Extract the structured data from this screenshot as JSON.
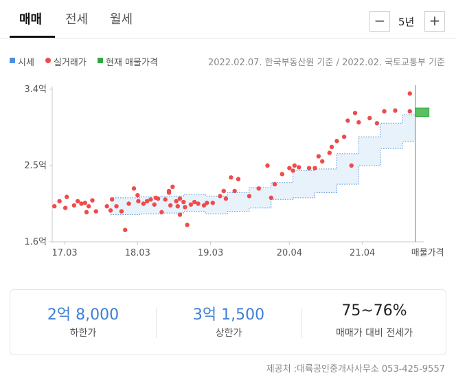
{
  "tabs": [
    {
      "label": "매매",
      "active": true
    },
    {
      "label": "전세",
      "active": false
    },
    {
      "label": "월세",
      "active": false
    }
  ],
  "period": {
    "value": "5년",
    "minus_icon": "minus-icon",
    "plus_icon": "plus-icon"
  },
  "legend": [
    {
      "label": "시세",
      "color": "#4a8fe0",
      "shape": "square"
    },
    {
      "label": "실거래가",
      "color": "#ee4b4b",
      "shape": "dot"
    },
    {
      "label": "현재 매물가격",
      "color": "#2eaa3c",
      "shape": "square"
    }
  ],
  "source_line": "2022.02.07. 한국부동산원 기준 / 2022.02. 국토교통부 기준",
  "chart_data": {
    "type": "scatter",
    "ylim": [
      1.6,
      3.4
    ],
    "y_ticks": [
      {
        "value": 3.4,
        "label": "3.4억"
      },
      {
        "value": 2.5,
        "label": "2.5억"
      },
      {
        "value": 1.6,
        "label": "1.6억"
      }
    ],
    "xlim": [
      2017.0,
      2022.1
    ],
    "x_ticks": [
      {
        "value": 2017.17,
        "label": "17.03"
      },
      {
        "value": 2018.17,
        "label": "18.03"
      },
      {
        "value": 2019.17,
        "label": "19.03"
      },
      {
        "value": 2020.25,
        "label": "20.04"
      },
      {
        "value": 2021.25,
        "label": "21.04"
      }
    ],
    "current_listing_label": "매물가격",
    "series": [
      {
        "name": "시세",
        "type": "band",
        "color": "#4a8fe0",
        "x": [
          2017.8,
          2018.2,
          2018.5,
          2018.8,
          2019.1,
          2019.4,
          2019.7,
          2020.0,
          2020.3,
          2020.6,
          2020.9,
          2021.2,
          2021.5,
          2021.8
        ],
        "upper": [
          2.12,
          2.13,
          2.14,
          2.16,
          2.14,
          2.18,
          2.24,
          2.3,
          2.44,
          2.46,
          2.64,
          2.84,
          3.0,
          3.1
        ],
        "lower": [
          1.92,
          1.93,
          1.94,
          1.96,
          1.93,
          1.96,
          2.0,
          2.1,
          2.12,
          2.18,
          2.28,
          2.5,
          2.7,
          2.78
        ]
      },
      {
        "name": "실거래가",
        "type": "scatter",
        "color": "#ee4b4b",
        "x": [
          2017.03,
          2017.1,
          2017.18,
          2017.2,
          2017.3,
          2017.35,
          2017.4,
          2017.45,
          2017.47,
          2017.5,
          2017.55,
          2017.6,
          2017.75,
          2017.8,
          2017.82,
          2017.88,
          2017.95,
          2018.0,
          2018.05,
          2018.12,
          2018.17,
          2018.18,
          2018.25,
          2018.3,
          2018.35,
          2018.4,
          2018.42,
          2018.45,
          2018.5,
          2018.55,
          2018.6,
          2018.6,
          2018.62,
          2018.65,
          2018.7,
          2018.72,
          2018.75,
          2018.75,
          2018.8,
          2018.82,
          2018.85,
          2018.9,
          2018.95,
          2019.0,
          2019.08,
          2019.12,
          2019.2,
          2019.3,
          2019.35,
          2019.38,
          2019.45,
          2019.5,
          2019.55,
          2019.7,
          2019.83,
          2019.95,
          2020.0,
          2020.05,
          2020.15,
          2020.25,
          2020.3,
          2020.32,
          2020.38,
          2020.52,
          2020.6,
          2020.65,
          2020.7,
          2020.8,
          2020.83,
          2020.9,
          2021.0,
          2021.05,
          2021.1,
          2021.15,
          2021.2,
          2021.35,
          2021.45,
          2021.55,
          2021.7,
          2021.9,
          2021.9
        ],
        "y": [
          2.02,
          2.08,
          2.0,
          2.13,
          2.03,
          2.08,
          2.05,
          2.06,
          1.95,
          2.02,
          2.09,
          1.96,
          2.02,
          1.97,
          2.1,
          2.02,
          1.96,
          1.74,
          2.05,
          2.23,
          2.15,
          2.08,
          2.05,
          2.08,
          2.1,
          2.04,
          2.12,
          2.11,
          1.95,
          2.1,
          2.2,
          2.18,
          2.03,
          2.25,
          2.08,
          2.02,
          2.11,
          1.92,
          2.07,
          2.01,
          1.8,
          2.04,
          2.07,
          2.05,
          2.03,
          2.06,
          2.06,
          2.14,
          2.2,
          2.11,
          2.36,
          2.2,
          2.34,
          2.14,
          2.23,
          2.5,
          2.12,
          2.28,
          2.4,
          2.47,
          2.44,
          2.5,
          2.48,
          2.47,
          2.47,
          2.61,
          2.55,
          2.65,
          2.72,
          2.79,
          2.84,
          3.03,
          2.5,
          3.12,
          3.01,
          3.06,
          3.0,
          3.14,
          3.15,
          3.14,
          3.35
        ]
      },
      {
        "name": "현재 매물가격",
        "type": "range",
        "color": "#2eaa3c",
        "x": 2022.05,
        "y_range": [
          3.08,
          3.18
        ]
      }
    ]
  },
  "summary": [
    {
      "value": "2억 8,000",
      "label": "하한가",
      "color": "#3d7fd6"
    },
    {
      "value": "3억 1,500",
      "label": "상한가",
      "color": "#3d7fd6"
    },
    {
      "value": "75~76%",
      "label": "매매가 대비 전세가",
      "color": "#222222"
    }
  ],
  "footer": "제공처 :대륙공인중개사사무소 053-425-9557"
}
